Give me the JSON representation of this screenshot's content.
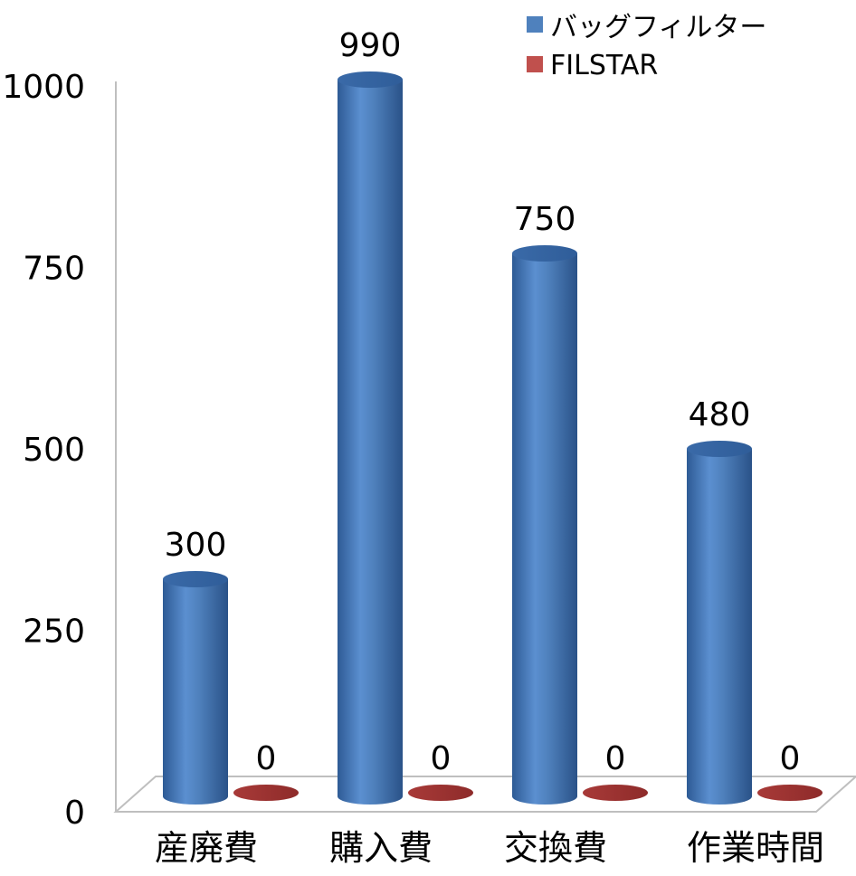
{
  "chart_data": {
    "type": "bar",
    "categories": [
      "産廃費",
      "購入費",
      "交換費",
      "作業時間"
    ],
    "series": [
      {
        "name": "バッグフィルター",
        "values": [
          300,
          990,
          750,
          480
        ],
        "color": "#4f81bd"
      },
      {
        "name": "FILSTAR",
        "values": [
          0,
          0,
          0,
          0
        ],
        "color": "#c0504d"
      }
    ],
    "ylim": [
      0,
      1000
    ],
    "yticks": [
      0,
      250,
      500,
      750,
      1000
    ],
    "legend_position": "top-right",
    "grid": false,
    "style": "3d-cylinder"
  }
}
